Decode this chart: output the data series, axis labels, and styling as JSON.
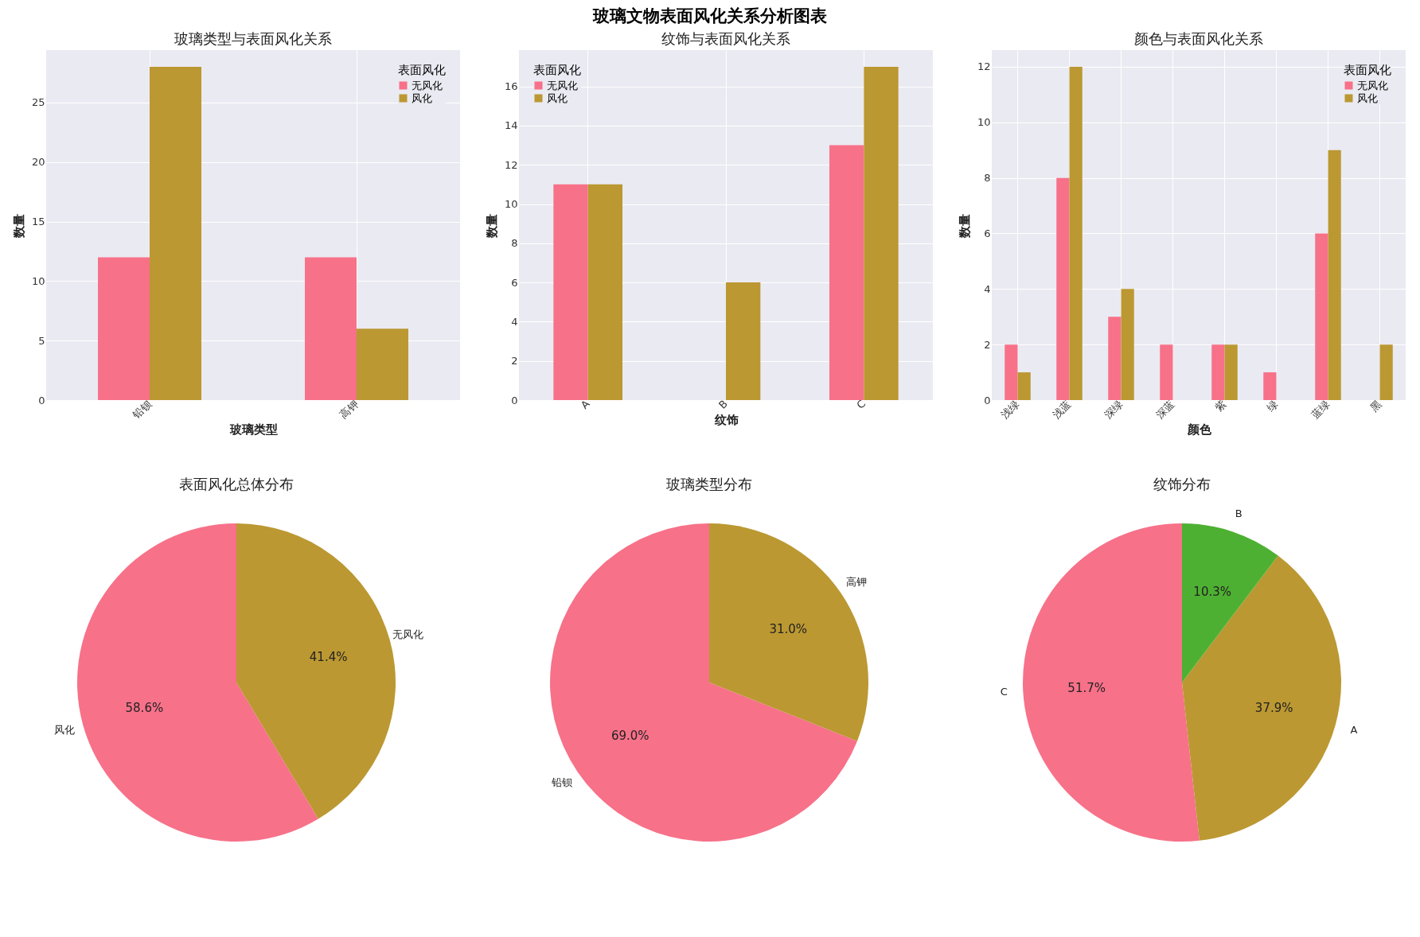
{
  "chart_data": [
    {
      "type": "other",
      "title": "玻璃文物表面风化关系分析图表"
    },
    {
      "type": "bar",
      "title": "玻璃类型与表面风化关系",
      "xlabel": "玻璃类型",
      "ylabel": "数量",
      "legend_title": "表面风化",
      "legend": "top right",
      "grid": true,
      "categories": [
        "铅钡",
        "高钾"
      ],
      "ylim": [
        0,
        29.4
      ],
      "yticks": [
        0,
        5,
        10,
        15,
        20,
        25
      ],
      "series": [
        {
          "name": "无风化",
          "color": "#f77189",
          "values": [
            12,
            12
          ]
        },
        {
          "name": "风化",
          "color": "#bb9832",
          "values": [
            28,
            6
          ]
        }
      ]
    },
    {
      "type": "bar",
      "title": "纹饰与表面风化关系",
      "xlabel": "纹饰",
      "ylabel": "数量",
      "legend_title": "表面风化",
      "legend": "top left",
      "grid": true,
      "categories": [
        "A",
        "B",
        "C"
      ],
      "ylim": [
        0,
        17.85
      ],
      "yticks": [
        0,
        2,
        4,
        6,
        8,
        10,
        12,
        14,
        16
      ],
      "series": [
        {
          "name": "无风化",
          "color": "#f77189",
          "values": [
            11,
            0,
            13
          ]
        },
        {
          "name": "风化",
          "color": "#bb9832",
          "values": [
            11,
            6,
            17
          ]
        }
      ]
    },
    {
      "type": "bar",
      "title": "颜色与表面风化关系",
      "xlabel": "颜色",
      "ylabel": "数量",
      "legend_title": "表面风化",
      "legend": "top right",
      "grid": true,
      "categories": [
        "浅绿",
        "浅蓝",
        "深绿",
        "深蓝",
        "紫",
        "绿",
        "蓝绿",
        "黑"
      ],
      "ylim": [
        0,
        12.6
      ],
      "yticks": [
        0,
        2,
        4,
        6,
        8,
        10,
        12
      ],
      "series": [
        {
          "name": "无风化",
          "color": "#f77189",
          "values": [
            2,
            8,
            3,
            2,
            2,
            1,
            6,
            0
          ]
        },
        {
          "name": "风化",
          "color": "#bb9832",
          "values": [
            1,
            12,
            4,
            0,
            2,
            0,
            9,
            2
          ]
        }
      ]
    },
    {
      "type": "pie",
      "title": "表面风化总体分布",
      "categories": [
        "风化",
        "无风化"
      ],
      "values": [
        58.6,
        41.4
      ],
      "colors": [
        "#f77189",
        "#bb9832"
      ],
      "value_labels": [
        "58.6%",
        "41.4%"
      ]
    },
    {
      "type": "pie",
      "title": "玻璃类型分布",
      "categories": [
        "铅钡",
        "高钾"
      ],
      "values": [
        69.0,
        31.0
      ],
      "colors": [
        "#f77189",
        "#bb9832"
      ],
      "value_labels": [
        "69.0%",
        "31.0%"
      ]
    },
    {
      "type": "pie",
      "title": "纹饰分布",
      "categories": [
        "C",
        "A",
        "B"
      ],
      "values": [
        51.7,
        37.9,
        10.3
      ],
      "colors": [
        "#f77189",
        "#bb9832",
        "#4eb032"
      ],
      "value_labels": [
        "51.7%",
        "37.9%",
        "10.3%"
      ]
    }
  ]
}
